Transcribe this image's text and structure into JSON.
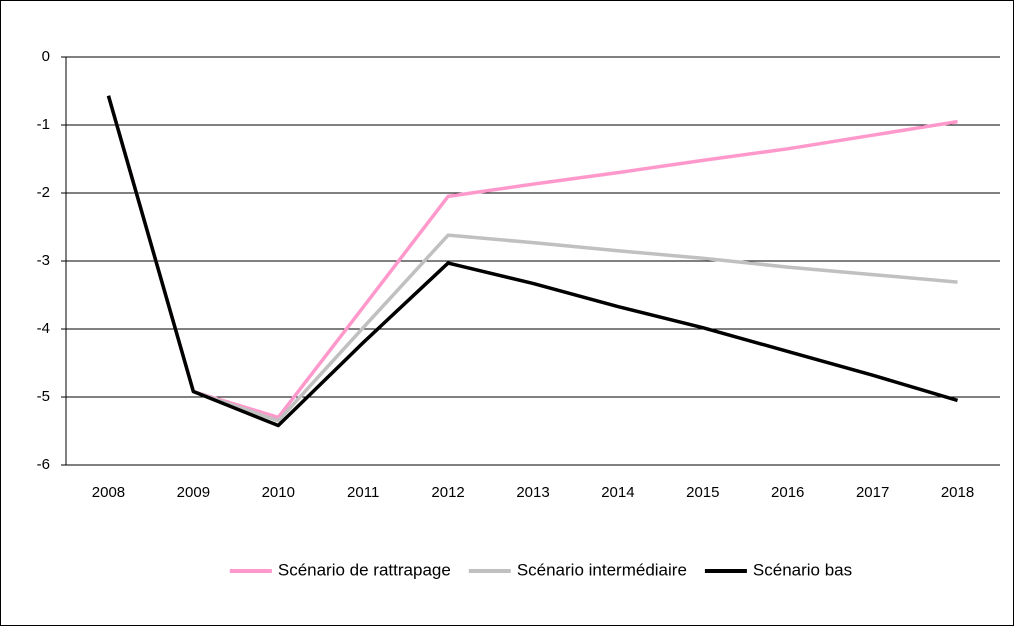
{
  "chart_data": {
    "type": "line",
    "categories": [
      "2008",
      "2009",
      "2010",
      "2011",
      "2012",
      "2013",
      "2014",
      "2015",
      "2016",
      "2017",
      "2018"
    ],
    "series": [
      {
        "name": "Scénario de rattrapage",
        "color": "#ff99cc",
        "values": [
          -0.57,
          -4.92,
          -5.3,
          -3.68,
          -2.05,
          -1.87,
          -1.7,
          -1.52,
          -1.35,
          -1.15,
          -0.95
        ]
      },
      {
        "name": "Scénario intermédiaire",
        "color": "#c0c0c0",
        "values": [
          -0.57,
          -4.92,
          -5.35,
          -3.98,
          -2.62,
          -2.73,
          -2.85,
          -2.96,
          -3.09,
          -3.2,
          -3.31
        ]
      },
      {
        "name": "Scénario bas",
        "color": "#000000",
        "values": [
          -0.57,
          -4.92,
          -5.42,
          -4.2,
          -3.03,
          -3.33,
          -3.67,
          -3.98,
          -4.33,
          -4.68,
          -5.05
        ]
      }
    ],
    "ylim": [
      -6,
      0
    ],
    "yticks": [
      -6,
      -5,
      -4,
      -3,
      -2,
      -1,
      0
    ],
    "grid": true,
    "legend": "bottom"
  }
}
